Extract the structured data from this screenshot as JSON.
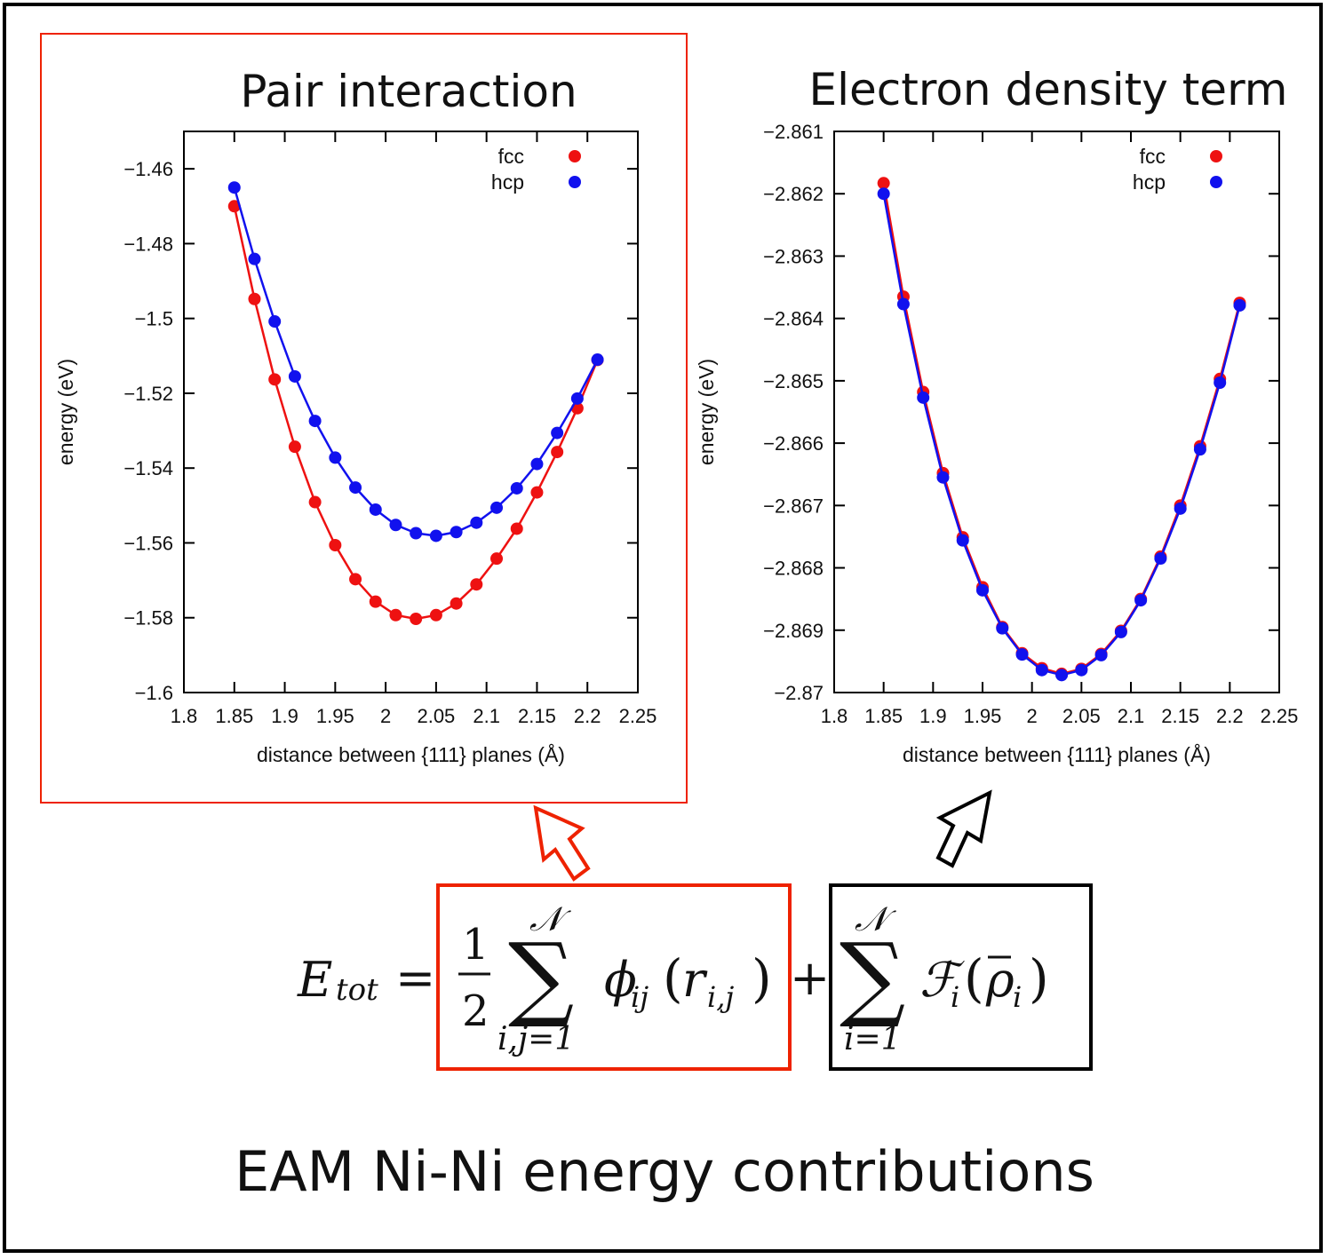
{
  "caption": "EAM Ni-Ni energy contributions",
  "colors": {
    "fcc": "#ee1111",
    "hcp": "#1111ee",
    "highlight": "#ee2200"
  },
  "chart_data": [
    {
      "type": "line",
      "title": "Pair interaction",
      "xlabel": "distance between {111} planes (Å)",
      "ylabel": "energy (eV)",
      "xlim": [
        1.8,
        2.25
      ],
      "ylim": [
        -1.6,
        -1.45
      ],
      "xticks": [
        1.8,
        1.85,
        1.9,
        1.95,
        2,
        2.05,
        2.1,
        2.15,
        2.2,
        2.25
      ],
      "xtick_labels": [
        "1.8",
        "1.85",
        "1.9",
        "1.95",
        "2",
        "2.05",
        "2.1",
        "2.15",
        "2.2",
        "2.25"
      ],
      "yticks": [
        -1.6,
        -1.58,
        -1.56,
        -1.54,
        -1.52,
        -1.5,
        -1.48,
        -1.46
      ],
      "ytick_labels": [
        "−1.6",
        "−1.58",
        "−1.56",
        "−1.54",
        "−1.52",
        "−1.5",
        "−1.48",
        "−1.46"
      ],
      "legend_position": "top-right",
      "series": [
        {
          "name": "fcc",
          "x": [
            1.85,
            1.87,
            1.89,
            1.91,
            1.93,
            1.95,
            1.97,
            1.99,
            2.01,
            2.03,
            2.05,
            2.07,
            2.09,
            2.11,
            2.13,
            2.15,
            2.17,
            2.19,
            2.21
          ],
          "y": [
            -1.47,
            -1.4948,
            -1.5163,
            -1.5343,
            -1.5491,
            -1.5606,
            -1.5697,
            -1.5757,
            -1.5793,
            -1.5803,
            -1.5793,
            -1.5762,
            -1.5711,
            -1.5642,
            -1.5562,
            -1.5465,
            -1.5357,
            -1.524,
            -1.5111
          ]
        },
        {
          "name": "hcp",
          "x": [
            1.85,
            1.87,
            1.89,
            1.91,
            1.93,
            1.95,
            1.97,
            1.99,
            2.01,
            2.03,
            2.05,
            2.07,
            2.09,
            2.11,
            2.13,
            2.15,
            2.17,
            2.19,
            2.21
          ],
          "y": [
            -1.465,
            -1.4841,
            -1.5008,
            -1.5155,
            -1.5274,
            -1.5372,
            -1.5452,
            -1.5511,
            -1.5552,
            -1.5574,
            -1.5581,
            -1.5571,
            -1.5546,
            -1.5506,
            -1.5454,
            -1.5389,
            -1.5306,
            -1.5214,
            -1.511
          ]
        }
      ]
    },
    {
      "type": "line",
      "title": "Electron density term",
      "xlabel": "distance between {111} planes (Å)",
      "ylabel": "energy (eV)",
      "xlim": [
        1.8,
        2.25
      ],
      "ylim": [
        -2.87,
        -2.861
      ],
      "xticks": [
        1.8,
        1.85,
        1.9,
        1.95,
        2,
        2.05,
        2.1,
        2.15,
        2.2,
        2.25
      ],
      "xtick_labels": [
        "1.8",
        "1.85",
        "1.9",
        "1.95",
        "2",
        "2.05",
        "2.1",
        "2.15",
        "2.2",
        "2.25"
      ],
      "yticks": [
        -2.87,
        -2.869,
        -2.868,
        -2.867,
        -2.866,
        -2.865,
        -2.864,
        -2.863,
        -2.862,
        -2.861
      ],
      "ytick_labels": [
        "−2.87",
        "−2.869",
        "−2.868",
        "−2.867",
        "−2.866",
        "−2.865",
        "−2.864",
        "−2.863",
        "−2.862",
        "−2.861"
      ],
      "legend_position": "top-right",
      "series": [
        {
          "name": "fcc",
          "x": [
            1.85,
            1.87,
            1.89,
            1.91,
            1.93,
            1.95,
            1.97,
            1.99,
            2.01,
            2.03,
            2.05,
            2.07,
            2.09,
            2.11,
            2.13,
            2.15,
            2.17,
            2.19,
            2.21
          ],
          "y": [
            -2.86183,
            -2.86365,
            -2.86518,
            -2.86648,
            -2.86751,
            -2.86831,
            -2.86895,
            -2.86937,
            -2.86961,
            -2.8697,
            -2.86962,
            -2.86938,
            -2.86901,
            -2.8685,
            -2.86782,
            -2.867,
            -2.86605,
            -2.86497,
            -2.86375
          ]
        },
        {
          "name": "hcp",
          "x": [
            1.85,
            1.87,
            1.89,
            1.91,
            1.93,
            1.95,
            1.97,
            1.99,
            2.01,
            2.03,
            2.05,
            2.07,
            2.09,
            2.11,
            2.13,
            2.15,
            2.17,
            2.19,
            2.21
          ],
          "y": [
            -2.862,
            -2.86377,
            -2.86527,
            -2.86655,
            -2.86756,
            -2.86836,
            -2.86897,
            -2.86939,
            -2.86964,
            -2.86972,
            -2.86964,
            -2.8694,
            -2.86903,
            -2.86852,
            -2.86785,
            -2.86705,
            -2.8661,
            -2.86503,
            -2.86379
          ]
        }
      ]
    }
  ],
  "equation": {
    "lhs": "E",
    "lhs_sub": "tot",
    "equals": "=",
    "frac_num": "1",
    "frac_den": "2",
    "sum_symbol": "∑",
    "sum_upper": "𝒩",
    "sum1_lower": "i,j=1",
    "pair_fn": "ϕ",
    "pair_sub": "ij",
    "pair_arg": "r",
    "pair_arg_sub": "i,j",
    "plus": "+",
    "sum2_lower": "i=1",
    "embed_fn": "ℱ",
    "embed_sub": "i",
    "embed_arg": "ρ",
    "embed_arg_sub": "i"
  }
}
